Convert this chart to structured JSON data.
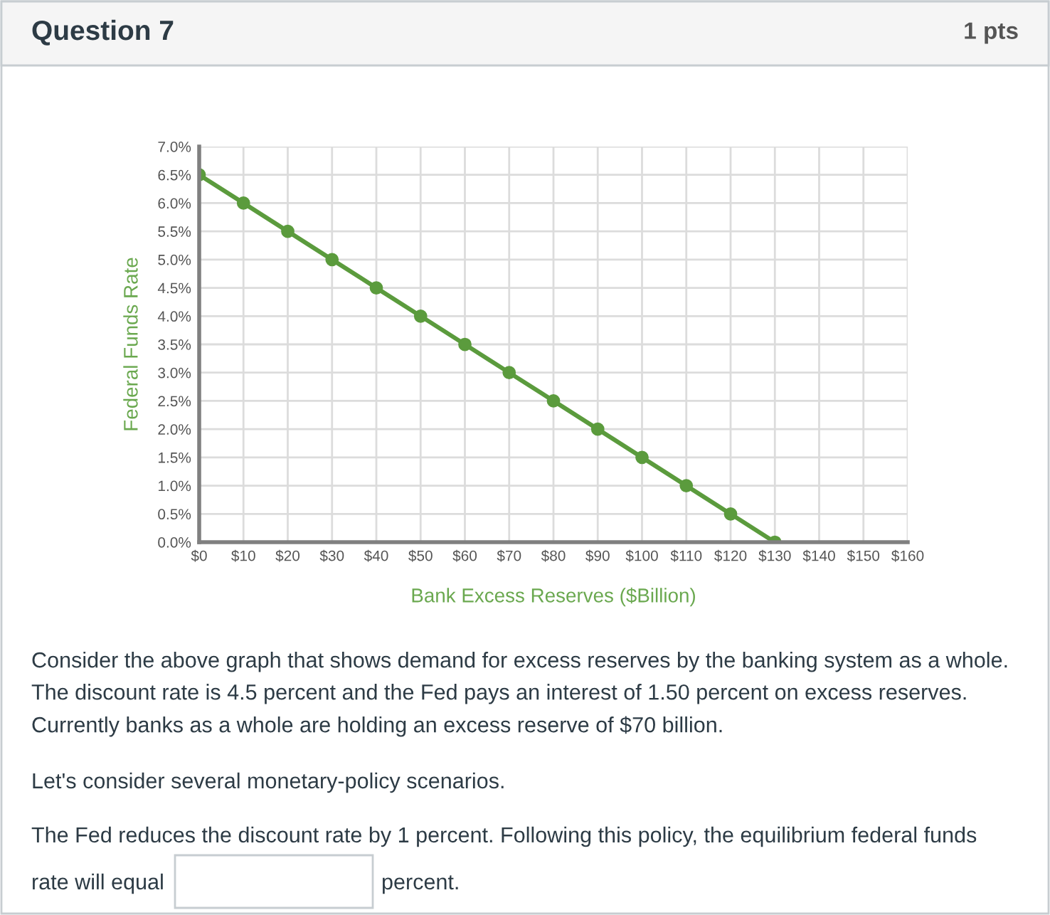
{
  "chart_data": {
    "type": "line",
    "title": "Question 7",
    "subtitle": "1 pts",
    "xlabel": "Bank Excess Reserves ($Billion)",
    "ylabel": "Federal Funds Rate",
    "x": [
      0,
      10,
      20,
      30,
      40,
      50,
      60,
      70,
      80,
      90,
      100,
      110,
      120,
      130
    ],
    "series": [
      {
        "color": "#5b9b3d",
        "values": [
          6.5,
          6.0,
          5.5,
          5.0,
          4.5,
          4.0,
          3.5,
          3.0,
          2.5,
          2.0,
          1.5,
          1.0,
          0.5,
          0.0
        ]
      }
    ],
    "marker": "circle",
    "line_style": "solid",
    "grid": true,
    "xlim": [
      0,
      160
    ],
    "xticks": [
      {
        "value": 0,
        "label": "$0"
      },
      {
        "value": 10,
        "label": "$10"
      },
      {
        "value": 20,
        "label": "$20"
      },
      {
        "value": 30,
        "label": "$30"
      },
      {
        "value": 40,
        "label": "$40"
      },
      {
        "value": 50,
        "label": "$50"
      },
      {
        "value": 60,
        "label": "$60"
      },
      {
        "value": 70,
        "label": "$70"
      },
      {
        "value": 80,
        "label": "$80"
      },
      {
        "value": 90,
        "label": "$90"
      },
      {
        "value": 100,
        "label": "$100"
      },
      {
        "value": 110,
        "label": "$110"
      },
      {
        "value": 120,
        "label": "$120"
      },
      {
        "value": 130,
        "label": "$130"
      },
      {
        "value": 140,
        "label": "$140"
      },
      {
        "value": 150,
        "label": "$150"
      },
      {
        "value": 160,
        "label": "$160"
      }
    ],
    "ylim": [
      0,
      7
    ],
    "yticks": [
      {
        "value": 0,
        "label": "0.0%"
      },
      {
        "value": 0.5,
        "label": "0.5%"
      },
      {
        "value": 1,
        "label": "1.0%"
      },
      {
        "value": 1.5,
        "label": "1.5%"
      },
      {
        "value": 2,
        "label": "2.0%"
      },
      {
        "value": 2.5,
        "label": "2.5%"
      },
      {
        "value": 3,
        "label": "3.0%"
      },
      {
        "value": 3.5,
        "label": "3.5%"
      },
      {
        "value": 4,
        "label": "4.0%"
      },
      {
        "value": 4.5,
        "label": "4.5%"
      },
      {
        "value": 5,
        "label": "5.0%"
      },
      {
        "value": 5.5,
        "label": "5.5%"
      },
      {
        "value": 6,
        "label": "6.0%"
      },
      {
        "value": 6.5,
        "label": "6.5%"
      },
      {
        "value": 7,
        "label": "7.0%"
      }
    ],
    "annotations": [
      "Consider the above graph that shows demand for excess reserves by the banking system as a whole. The discount rate is 4.5 percent and the Fed pays an interest of 1.50 percent on excess reserves. Currently banks as a whole are holding an excess reserve of $70 billion.",
      "Let's consider several monetary-policy scenarios.",
      "The Fed reduces the discount rate by 1 percent. Following this policy, the equilibrium federal funds",
      "rate will equal",
      "percent."
    ]
  }
}
